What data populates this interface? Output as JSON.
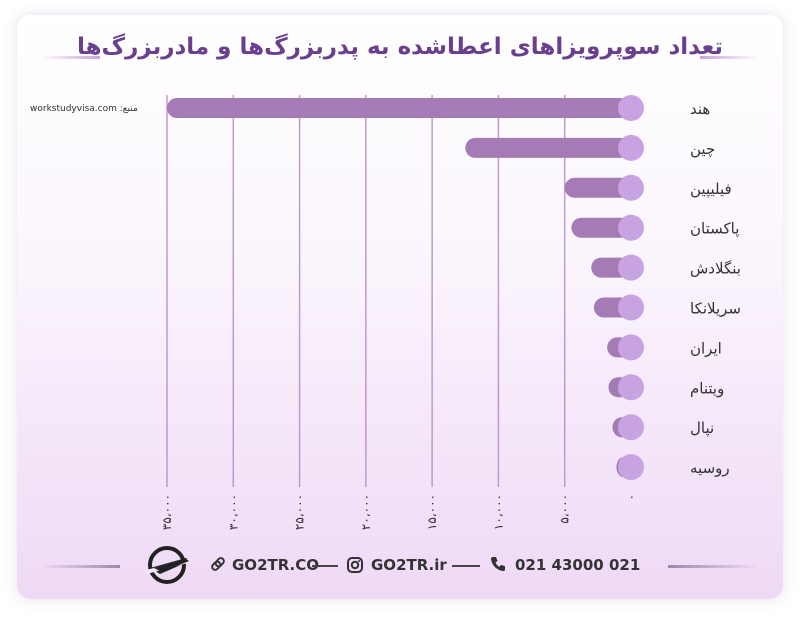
{
  "title": "تعداد سوپرویزاهای اعطاشده به پدربزرگ‌ها و مادربزرگ‌ها",
  "source_label": "workstudyvisa.com :منبع",
  "chart_data": {
    "type": "bar",
    "orientation": "horizontal",
    "categories": [
      "هند",
      "چین",
      "فیلیپین",
      "پاکستان",
      "بنگلادش",
      "سریلانکا",
      "ایران",
      "ویتنام",
      "نپال",
      "روسیه"
    ],
    "values": [
      35000,
      12500,
      5000,
      4500,
      3000,
      2800,
      1800,
      1700,
      1400,
      1100
    ],
    "xlim": [
      0,
      35000
    ],
    "x_ticks": [
      "۰",
      "۵،۰۰۰",
      "۱۰،۰۰۰",
      "۱۵،۰۰۰",
      "۲۰،۰۰۰",
      "۲۵،۰۰۰",
      "۳۰،۰۰۰",
      "۳۵،۰۰۰"
    ],
    "bar_color": "#a57bb6",
    "dot_color": "#c8a3e1",
    "grid_color": "#b78ac9"
  },
  "footer": {
    "website": "GO2TR.CO",
    "instagram": "GO2TR.ir",
    "phone": "021 43000 021",
    "icons": [
      "plane-logo-icon",
      "link-icon",
      "instagram-icon",
      "phone-icon"
    ]
  }
}
